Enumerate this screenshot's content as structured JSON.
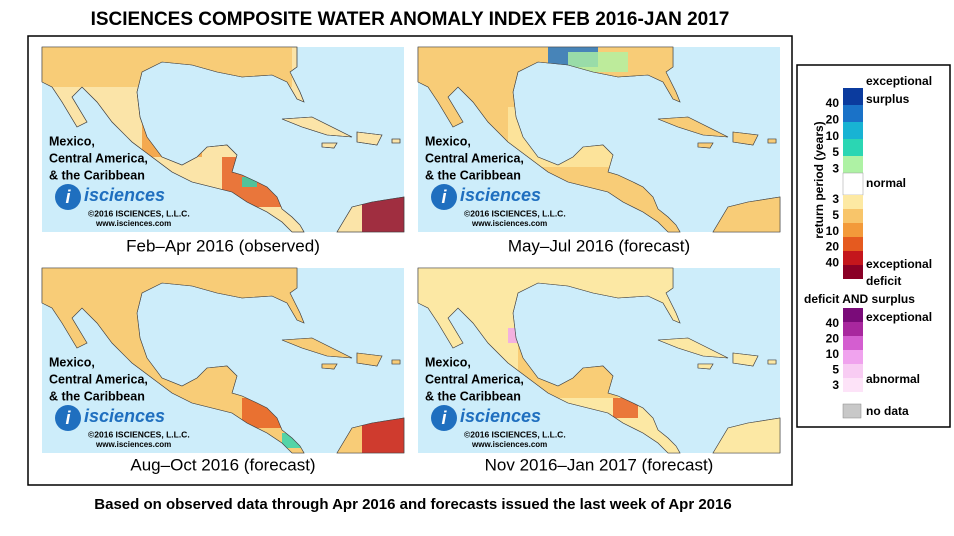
{
  "title": "ISCIENCES COMPOSITE WATER ANOMALY INDEX FEB 2016-JAN 2017",
  "footnote": "Based on observed data through Apr 2016 and forecasts issued the last week of Apr 2016",
  "map_label": [
    "Mexico,",
    "Central America,",
    "& the Caribbean"
  ],
  "logo": "isciences",
  "copyright": "©2016 ISCIENCES, L.L.C.",
  "url": "www.isciences.com",
  "panels": [
    {
      "caption": "Feb–Apr 2016 (observed)"
    },
    {
      "caption": "May–Jul 2016 (forecast)"
    },
    {
      "caption": "Aug–Oct 2016 (forecast)"
    },
    {
      "caption": "Nov 2016–Jan 2017 (forecast)"
    }
  ],
  "legend": {
    "axis_label": "return period (years)",
    "surplus_top": [
      "exceptional",
      "surplus"
    ],
    "surplus_ticks": [
      40,
      20,
      10,
      5,
      3
    ],
    "surplus_colors": [
      "#0b3b9e",
      "#1a72c8",
      "#18b3d3",
      "#2bd6b3",
      "#aef2a4"
    ],
    "normal": "normal",
    "deficit_ticks": [
      3,
      5,
      10,
      20,
      40
    ],
    "deficit_colors": [
      "#fde9a3",
      "#f8c56a",
      "#f39a3a",
      "#e55a1f",
      "#c4161c",
      "#8a0026"
    ],
    "deficit_bottom": [
      "exceptional",
      "deficit"
    ],
    "both_title": "deficit AND surplus",
    "both_top": "exceptional",
    "both_ticks": [
      40,
      20,
      10,
      5,
      3
    ],
    "both_colors": [
      "#7a0b79",
      "#a8279e",
      "#d45ed0",
      "#f0a3ee",
      "#f8ccf3",
      "#fde3f8"
    ],
    "both_bottom": "abnormal",
    "no_data": "no data"
  }
}
